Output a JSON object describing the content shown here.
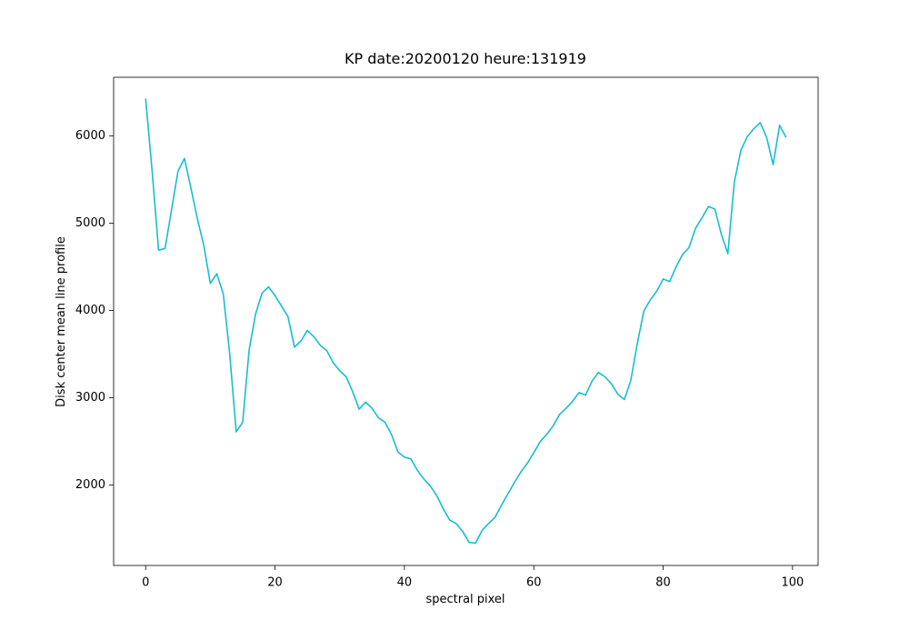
{
  "chart_data": {
    "type": "line",
    "title": "KP date:20200120 heure:131919",
    "xlabel": "spectral pixel",
    "ylabel": "Disk center mean line profile",
    "color": "#17becf",
    "x": [
      0,
      1,
      2,
      3,
      4,
      5,
      6,
      7,
      8,
      9,
      10,
      11,
      12,
      13,
      14,
      15,
      16,
      17,
      18,
      19,
      20,
      21,
      22,
      23,
      24,
      25,
      26,
      27,
      28,
      29,
      30,
      31,
      32,
      33,
      34,
      35,
      36,
      37,
      38,
      39,
      40,
      41,
      42,
      43,
      44,
      45,
      46,
      47,
      48,
      49,
      50,
      51,
      52,
      53,
      54,
      55,
      56,
      57,
      58,
      59,
      60,
      61,
      62,
      63,
      64,
      65,
      66,
      67,
      68,
      69,
      70,
      71,
      72,
      73,
      74,
      75,
      76,
      77,
      78,
      79,
      80,
      81,
      82,
      83,
      84,
      85,
      86,
      87,
      88,
      89,
      90,
      91,
      92,
      93,
      94,
      95,
      96,
      97,
      98,
      99
    ],
    "values": [
      6426,
      5600,
      4690,
      4710,
      5150,
      5595,
      5740,
      5400,
      5050,
      4740,
      4310,
      4420,
      4190,
      3500,
      2610,
      2720,
      3550,
      3960,
      4200,
      4270,
      4170,
      4050,
      3930,
      3580,
      3650,
      3770,
      3700,
      3600,
      3540,
      3400,
      3310,
      3240,
      3070,
      2870,
      2950,
      2880,
      2770,
      2720,
      2580,
      2380,
      2320,
      2300,
      2170,
      2070,
      1990,
      1880,
      1730,
      1600,
      1560,
      1470,
      1345,
      1335,
      1480,
      1560,
      1630,
      1770,
      1900,
      2030,
      2150,
      2250,
      2370,
      2500,
      2580,
      2680,
      2810,
      2880,
      2960,
      3060,
      3030,
      3190,
      3290,
      3240,
      3160,
      3040,
      2980,
      3200,
      3620,
      3990,
      4120,
      4220,
      4360,
      4330,
      4500,
      4640,
      4720,
      4940,
      5060,
      5190,
      5160,
      4870,
      4650,
      5470,
      5830,
      5990,
      6080,
      6150,
      5980,
      5670,
      6120,
      5980
    ],
    "xlim": [
      -4.95,
      103.95
    ],
    "ylim": [
      1080,
      6670
    ],
    "xticks": [
      0,
      20,
      40,
      60,
      80,
      100
    ],
    "yticks": [
      2000,
      3000,
      4000,
      5000,
      6000
    ]
  }
}
